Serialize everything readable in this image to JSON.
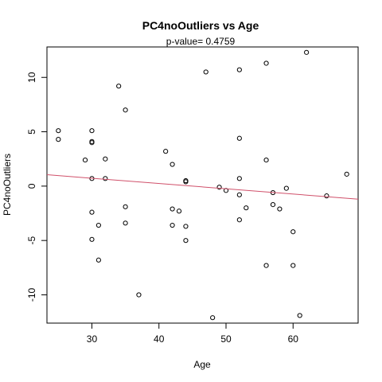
{
  "chart_data": {
    "type": "scatter",
    "title": "PC4noOutliers  vs  Age",
    "subtitle": "p-value= 0.4759",
    "xlabel": "Age",
    "ylabel": "PC4noOutliers",
    "xlim": [
      23.3,
      69.7
    ],
    "ylim": [
      -12.6,
      12.8
    ],
    "xticks": [
      30,
      40,
      50,
      60
    ],
    "yticks": [
      -10,
      -5,
      0,
      5,
      10
    ],
    "grid": false,
    "regression_line": {
      "color": "#d0506a",
      "x": [
        23.3,
        69.7
      ],
      "y": [
        1.05,
        -1.2
      ]
    },
    "points": [
      {
        "x": 25,
        "y": 5.1
      },
      {
        "x": 25,
        "y": 4.3
      },
      {
        "x": 29,
        "y": 2.4
      },
      {
        "x": 30,
        "y": 5.1
      },
      {
        "x": 30,
        "y": 4.1
      },
      {
        "x": 30,
        "y": 4.0
      },
      {
        "x": 30,
        "y": 0.7
      },
      {
        "x": 30,
        "y": -2.4
      },
      {
        "x": 30,
        "y": -4.9
      },
      {
        "x": 31,
        "y": -3.6
      },
      {
        "x": 31,
        "y": -6.8
      },
      {
        "x": 32,
        "y": 2.5
      },
      {
        "x": 32,
        "y": 0.7
      },
      {
        "x": 34,
        "y": 9.2
      },
      {
        "x": 35,
        "y": 7.0
      },
      {
        "x": 35,
        "y": -1.9
      },
      {
        "x": 35,
        "y": -3.4
      },
      {
        "x": 37,
        "y": -10.0
      },
      {
        "x": 41,
        "y": 3.2
      },
      {
        "x": 42,
        "y": 2.0
      },
      {
        "x": 42,
        "y": -2.1
      },
      {
        "x": 42,
        "y": -3.6
      },
      {
        "x": 43,
        "y": -2.3
      },
      {
        "x": 44,
        "y": 0.5
      },
      {
        "x": 44,
        "y": 0.4
      },
      {
        "x": 44,
        "y": -3.7
      },
      {
        "x": 44,
        "y": -5.0
      },
      {
        "x": 47,
        "y": 10.5
      },
      {
        "x": 48,
        "y": -12.1
      },
      {
        "x": 49,
        "y": -0.1
      },
      {
        "x": 50,
        "y": -0.4
      },
      {
        "x": 52,
        "y": 10.7
      },
      {
        "x": 52,
        "y": 4.4
      },
      {
        "x": 52,
        "y": 0.7
      },
      {
        "x": 52,
        "y": -0.8
      },
      {
        "x": 52,
        "y": -3.1
      },
      {
        "x": 53,
        "y": -2.0
      },
      {
        "x": 56,
        "y": 11.3
      },
      {
        "x": 56,
        "y": 2.4
      },
      {
        "x": 56,
        "y": -7.3
      },
      {
        "x": 57,
        "y": -0.6
      },
      {
        "x": 57,
        "y": -1.7
      },
      {
        "x": 58,
        "y": -2.1
      },
      {
        "x": 59,
        "y": -0.2
      },
      {
        "x": 60,
        "y": -4.2
      },
      {
        "x": 60,
        "y": -7.3
      },
      {
        "x": 61,
        "y": -11.9
      },
      {
        "x": 62,
        "y": 12.3
      },
      {
        "x": 65,
        "y": -0.9
      },
      {
        "x": 68,
        "y": 1.1
      }
    ]
  }
}
